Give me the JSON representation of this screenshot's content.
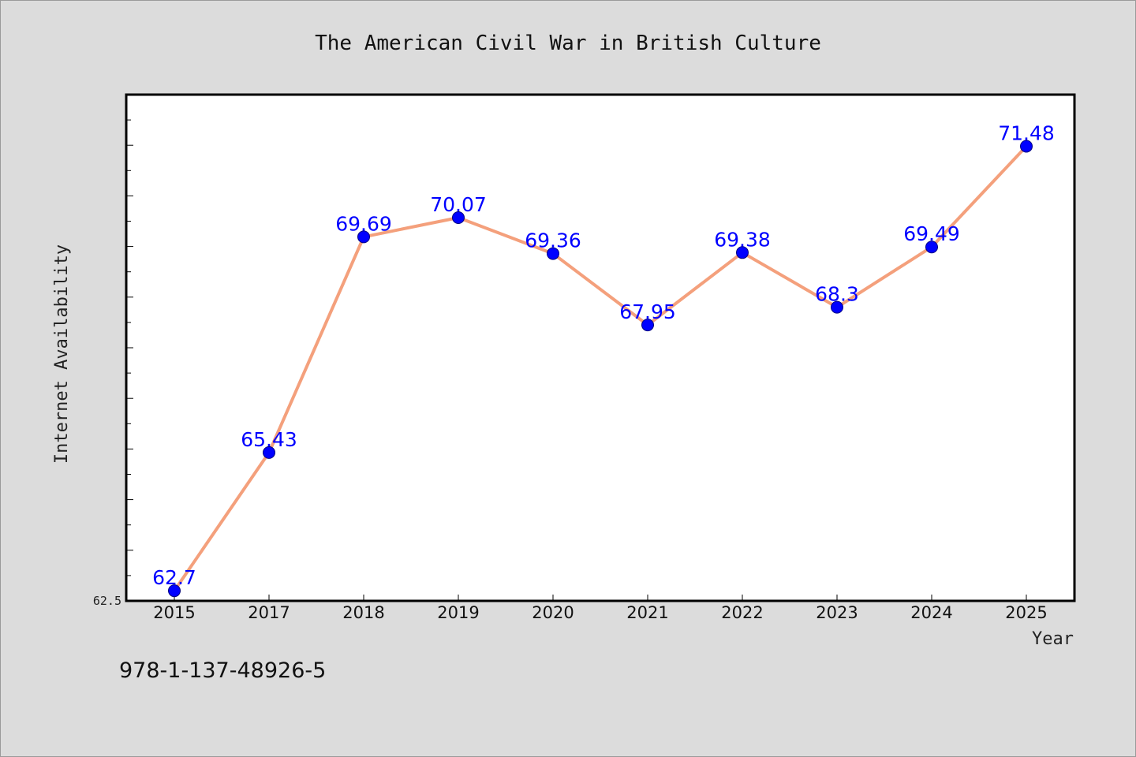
{
  "chart_data": {
    "type": "line",
    "title": "The American Civil War in British Culture",
    "xlabel": "Year",
    "ylabel": "Internet Availability",
    "categories": [
      "2015",
      "2017",
      "2018",
      "2019",
      "2020",
      "2021",
      "2022",
      "2023",
      "2024",
      "2025"
    ],
    "series": [
      {
        "values": [
          62.7,
          65.43,
          69.69,
          70.07,
          69.36,
          67.95,
          69.38,
          68.3,
          69.49,
          71.48
        ]
      }
    ],
    "data_labels": [
      "62.7",
      "65.43",
      "69.69",
      "70.07",
      "69.36",
      "67.95",
      "69.38",
      "68.3",
      "69.49",
      "71.48"
    ],
    "ylim": [
      62.5,
      72.5
    ],
    "yticks_labeled": [
      "62.5"
    ],
    "grid": false,
    "legend": "none",
    "colors": {
      "line": "#f4a07c",
      "marker": "#0000ff",
      "data_label": "#0000ff",
      "plot_background": "#ffffff",
      "figure_background": "#dcdcdc"
    }
  },
  "footnote": "978-1-137-48926-5"
}
